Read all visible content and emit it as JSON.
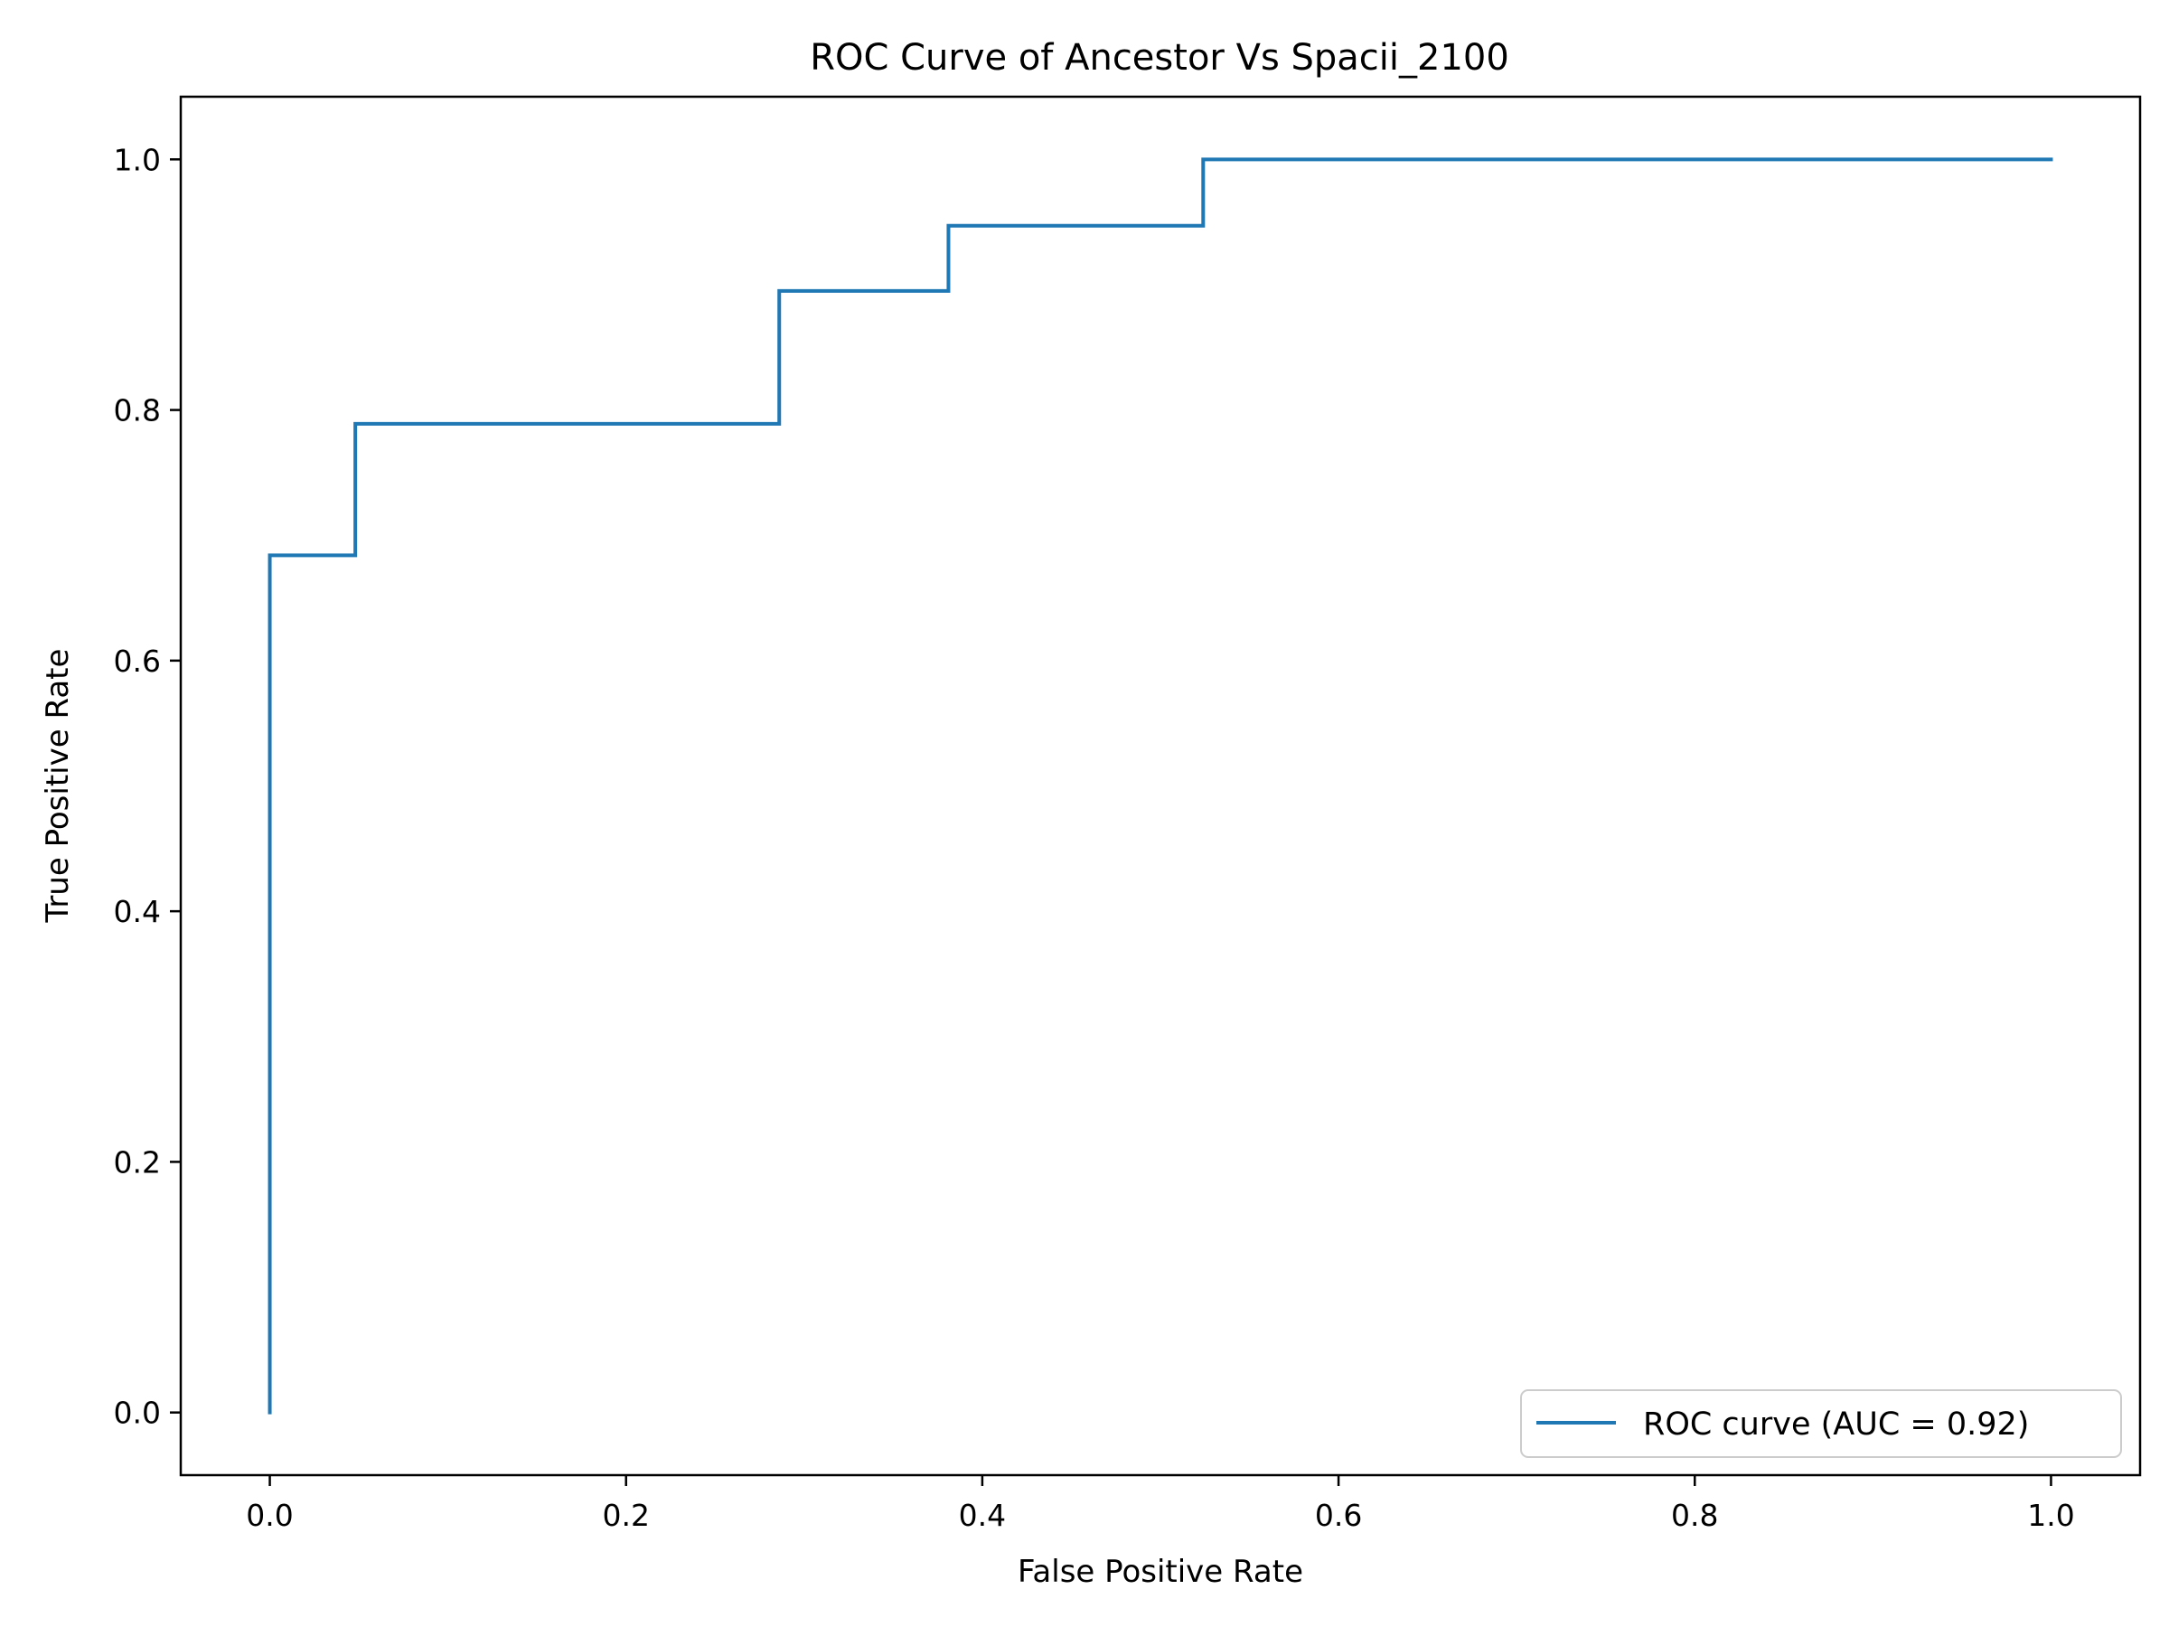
{
  "chart_data": {
    "type": "line",
    "title": "ROC Curve of Ancestor Vs Spacii_2100",
    "xlabel": "False Positive Rate",
    "ylabel": "True Positive Rate",
    "xlim": [
      -0.05,
      1.05
    ],
    "ylim": [
      -0.05,
      1.05
    ],
    "x_ticks": [
      0.0,
      0.2,
      0.4,
      0.6,
      0.8,
      1.0
    ],
    "x_tick_labels": [
      "0.0",
      "0.2",
      "0.4",
      "0.6",
      "0.8",
      "1.0"
    ],
    "y_ticks": [
      0.0,
      0.2,
      0.4,
      0.6,
      0.8,
      1.0
    ],
    "y_tick_labels": [
      "0.0",
      "0.2",
      "0.4",
      "0.6",
      "0.8",
      "1.0"
    ],
    "grid": false,
    "legend_position": "lower-right",
    "series": [
      {
        "name": "ROC curve (AUC = 0.92)",
        "color": "#1f77b4",
        "x": [
          0.0,
          0.0,
          0.048,
          0.048,
          0.286,
          0.286,
          0.381,
          0.381,
          0.524,
          0.524,
          1.0
        ],
        "y": [
          0.0,
          0.684,
          0.684,
          0.789,
          0.789,
          0.895,
          0.895,
          0.947,
          0.947,
          1.0,
          1.0
        ]
      }
    ]
  }
}
